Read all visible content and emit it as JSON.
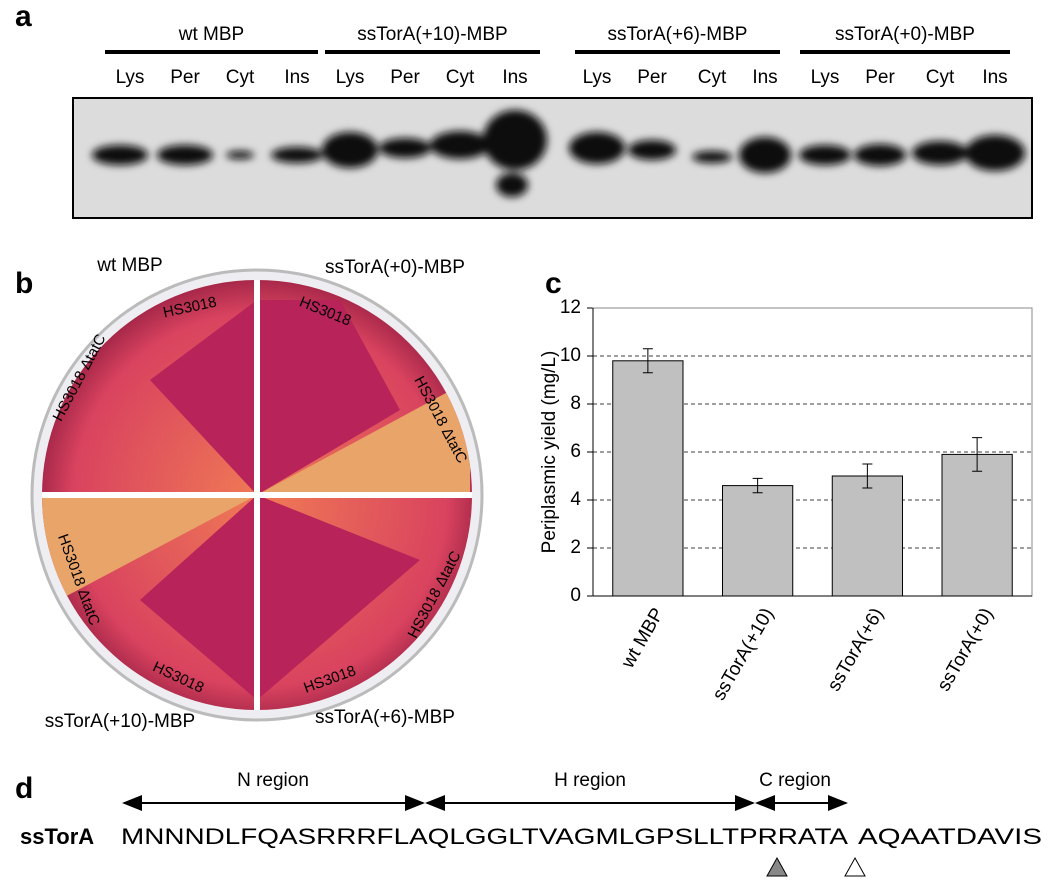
{
  "panel_a": {
    "label": "a",
    "groups": [
      {
        "name": "wt MBP",
        "lanes": [
          "Lys",
          "Per",
          "Cyt",
          "Ins"
        ]
      },
      {
        "name": "ssTorA(+10)-MBP",
        "lanes": [
          "Lys",
          "Per",
          "Cyt",
          "Ins"
        ]
      },
      {
        "name": "ssTorA(+6)-MBP",
        "lanes": [
          "Lys",
          "Per",
          "Cyt",
          "Ins"
        ]
      },
      {
        "name": "ssTorA(+0)-MBP",
        "lanes": [
          "Lys",
          "Per",
          "Cyt",
          "Ins"
        ]
      }
    ]
  },
  "panel_b": {
    "label": "b",
    "quadrants": [
      "wt MBP",
      "ssTorA(+0)-MBP",
      "ssTorA(+10)-MBP",
      "ssTorA(+6)-MBP"
    ],
    "strains": [
      "HS3018",
      "HS3018 ΔtatC",
      "HS3018",
      "HS3018 ΔtatC",
      "HS3018 ΔtatC",
      "HS3018",
      "HS3018",
      "HS3018 ΔtatC"
    ]
  },
  "panel_c": {
    "label": "c"
  },
  "chart_data": {
    "type": "bar",
    "y_label": "Periplasmic yield (mg/L)",
    "categories": [
      "wt MBP",
      "ssTorA(+10)",
      "ssTorA(+6)",
      "ssTorA(+0)"
    ],
    "values": [
      9.8,
      4.6,
      5.0,
      5.9
    ],
    "errors": [
      0.5,
      0.3,
      0.5,
      0.7
    ],
    "color": "#c0c0c0",
    "ylim": [
      0,
      12
    ],
    "yticks": [
      0,
      2,
      4,
      6,
      8,
      10,
      12
    ],
    "grid": true
  },
  "panel_d": {
    "label": "d",
    "regions": [
      "N region",
      "H region",
      "C region"
    ],
    "protein": "ssTorA",
    "sequence": "MNNNDLFQASRRRFLAQLGGLTVAGMLGPSLLTPRRATA",
    "mature": "AQAATDAVIS"
  }
}
